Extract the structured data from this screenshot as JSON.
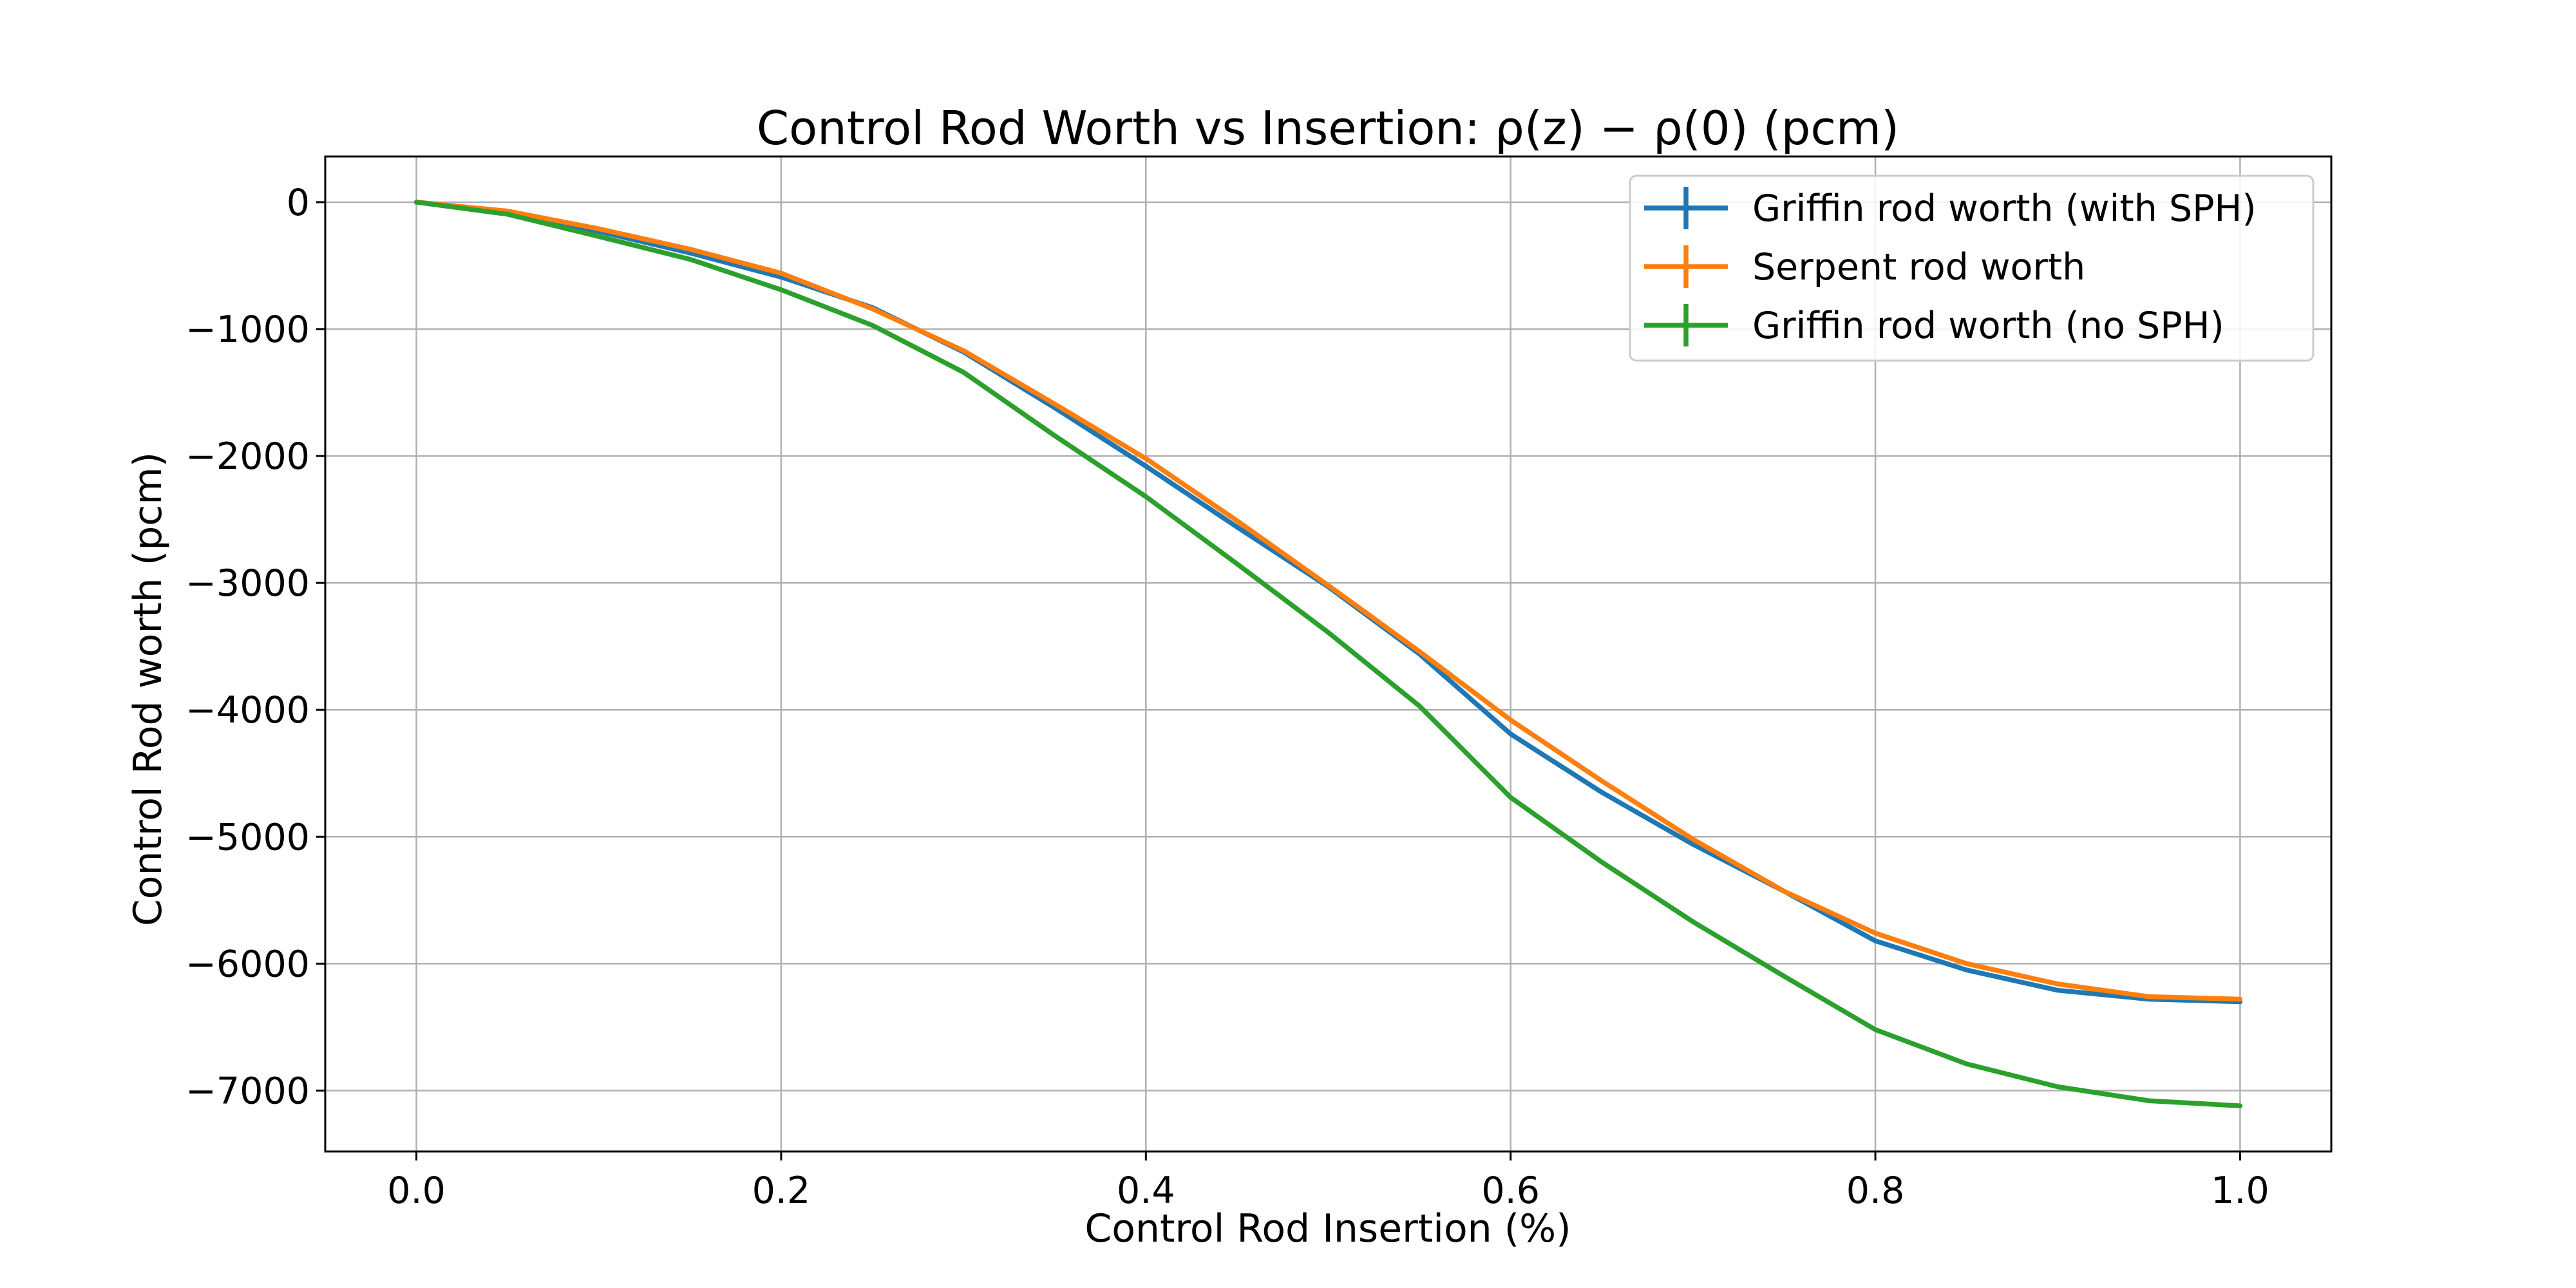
{
  "chart_data": {
    "type": "line",
    "title": "Control Rod Worth vs Insertion: ρ(z) − ρ(0) (pcm)",
    "xlabel": "Control Rod Insertion (%)",
    "ylabel": "Control Rod worth (pcm)",
    "xlim": [
      -0.05,
      1.05
    ],
    "ylim": [
      -7480,
      360
    ],
    "x_ticks": [
      0.0,
      0.2,
      0.4,
      0.6,
      0.8,
      1.0
    ],
    "x_tick_labels": [
      "0.0",
      "0.2",
      "0.4",
      "0.6",
      "0.8",
      "1.0"
    ],
    "y_ticks": [
      0,
      -1000,
      -2000,
      -3000,
      -4000,
      -5000,
      -6000,
      -7000
    ],
    "y_tick_labels": [
      "0",
      "−1000",
      "−2000",
      "−3000",
      "−4000",
      "−5000",
      "−6000",
      "−7000"
    ],
    "grid": true,
    "legend_position": "top-right",
    "x": [
      0.0,
      0.05,
      0.1,
      0.15,
      0.2,
      0.25,
      0.3,
      0.35,
      0.4,
      0.45,
      0.5,
      0.55,
      0.6,
      0.65,
      0.7,
      0.75,
      0.8,
      0.85,
      0.9,
      0.95,
      1.0
    ],
    "series": [
      {
        "name": "Griffin rod worth (with SPH)",
        "color": "#1f77b4",
        "values": [
          0,
          -85,
          -230,
          -400,
          -590,
          -830,
          -1180,
          -1620,
          -2080,
          -2560,
          -3030,
          -3560,
          -4190,
          -4650,
          -5060,
          -5430,
          -5820,
          -6050,
          -6210,
          -6280,
          -6300
        ]
      },
      {
        "name": "Serpent rod worth",
        "color": "#ff7f0e",
        "values": [
          0,
          -70,
          -210,
          -370,
          -560,
          -840,
          -1170,
          -1590,
          -2020,
          -2510,
          -3020,
          -3540,
          -4080,
          -4560,
          -5020,
          -5430,
          -5760,
          -6000,
          -6160,
          -6260,
          -6280
        ]
      },
      {
        "name": "Griffin rod worth (no SPH)",
        "color": "#2ca02c",
        "values": [
          0,
          -95,
          -270,
          -450,
          -690,
          -970,
          -1340,
          -1840,
          -2320,
          -2850,
          -3390,
          -3970,
          -4690,
          -5200,
          -5670,
          -6100,
          -6520,
          -6790,
          -6970,
          -7080,
          -7120
        ]
      }
    ]
  }
}
